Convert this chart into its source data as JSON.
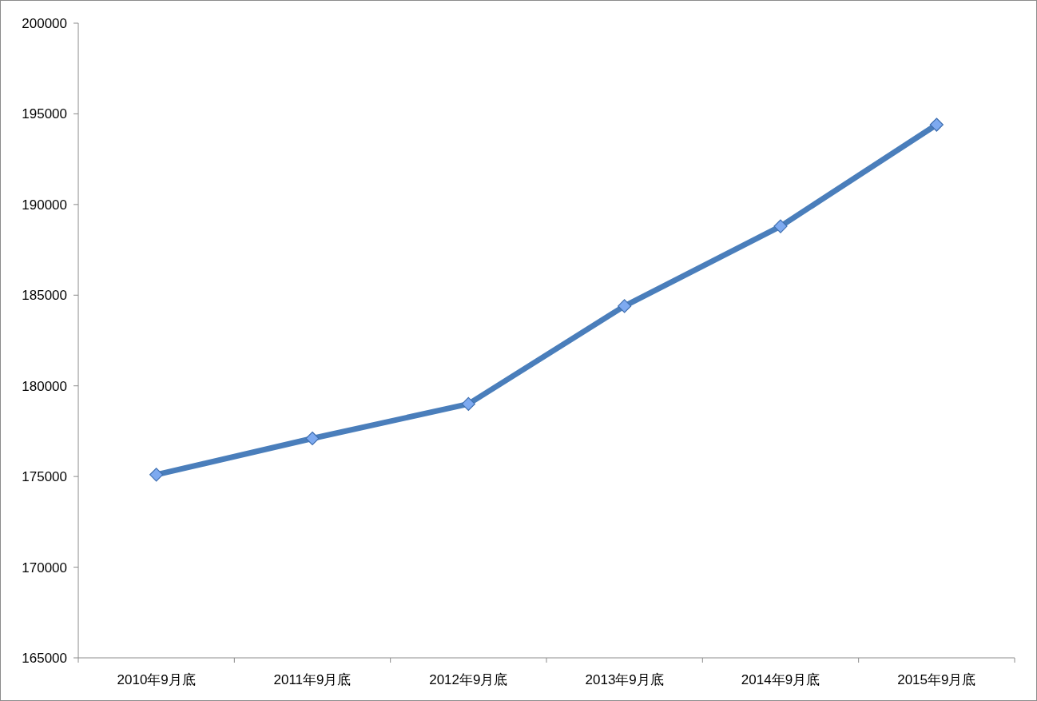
{
  "chart_data": {
    "type": "line",
    "categories": [
      "2010年9月底",
      "2011年9月底",
      "2012年9月底",
      "2013年9月底",
      "2014年9月底",
      "2015年9月底"
    ],
    "series": [
      {
        "color": "#4a7ebb",
        "values": [
          175100,
          177100,
          179000,
          184400,
          188800,
          194400
        ]
      }
    ],
    "ylim": [
      165000,
      200000
    ],
    "yticks": [
      165000,
      170000,
      175000,
      180000,
      185000,
      190000,
      195000,
      200000
    ],
    "marker": "diamond",
    "line_style": "solid",
    "grid": false
  }
}
